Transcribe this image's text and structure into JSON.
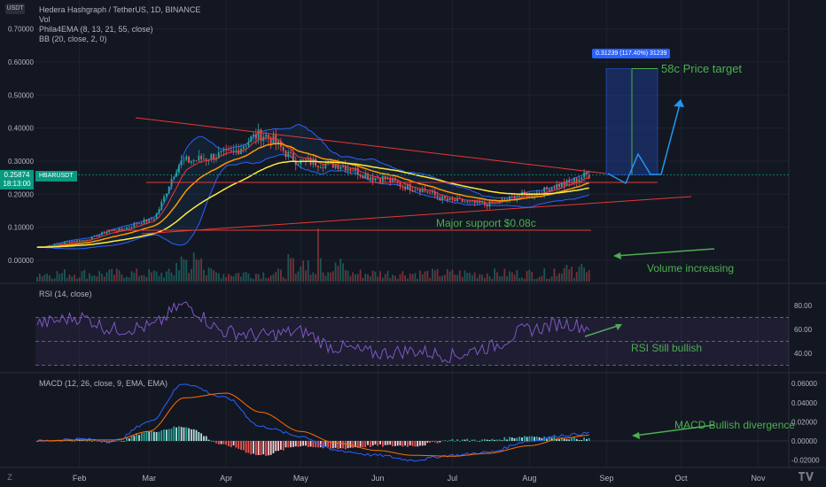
{
  "header": {
    "currency_badge": "USDT",
    "title": "Hedera Hashgraph / TetherUS, 1D, BINANCE",
    "vol_label": "Vol",
    "ema_label": "Phila4EMA (8, 13, 21, 55, close)",
    "bb_label": "BB (20, close, 2, 0)"
  },
  "price_tag": {
    "price": "0.25874",
    "countdown": "18:13:00",
    "symbol": "HBARUSDT"
  },
  "measure_label": "0.31239 (117.40%) 31239",
  "annotations": {
    "target": "58c Price target",
    "support": "Major support $0.08c",
    "volume": "Volume increasing",
    "rsi": "RSI Still bullish",
    "macd": "MACD Bullish divergence"
  },
  "rsi_label": "RSI (14, close)",
  "macd_label": "MACD (12, 26, close, 9, EMA, EMA)",
  "footer": {
    "z_label": "Z"
  },
  "colors": {
    "background": "#131722",
    "grid": "#1e222d",
    "up": "#26a69a",
    "down": "#ef5350",
    "ema_orange": "#ff9800",
    "ema_yellow": "#ffeb3b",
    "ema_red": "#f23645",
    "bb": "#2962ff",
    "rsi_line": "#7e57c2",
    "macd_line": "#2962ff",
    "signal_line": "#ff6d00",
    "annotation": "#4caf50"
  },
  "chart_data": [
    {
      "type": "candlestick",
      "title": "Hedera Hashgraph / TetherUS, 1D, BINANCE",
      "x": [
        "2021-01-15",
        "2021-02-01",
        "2021-02-15",
        "2021-03-01",
        "2021-03-15",
        "2021-04-01",
        "2021-04-15",
        "2021-05-01",
        "2021-05-15",
        "2021-06-01",
        "2021-06-15",
        "2021-07-01",
        "2021-07-15",
        "2021-08-01",
        "2021-08-15",
        "2021-08-25"
      ],
      "close": [
        0.04,
        0.06,
        0.09,
        0.12,
        0.3,
        0.32,
        0.38,
        0.3,
        0.29,
        0.25,
        0.22,
        0.18,
        0.17,
        0.2,
        0.23,
        0.25874
      ],
      "x_ticks": [
        "Feb",
        "Mar",
        "Apr",
        "May",
        "Jun",
        "Jul",
        "Aug",
        "Sep",
        "Oct",
        "Nov"
      ],
      "y_ticks": [
        0.0,
        0.1,
        0.2,
        0.3,
        0.4,
        0.5,
        0.6,
        0.7
      ],
      "y_tick_labels": [
        "0.00000",
        "0.10000",
        "0.20000",
        "0.30000",
        "0.40000",
        "0.50000",
        "0.60000",
        "0.70000"
      ],
      "ylim": [
        0.0,
        0.7
      ],
      "current_price": 0.25874,
      "price_target": 0.58,
      "support_level": 0.08
    },
    {
      "type": "line",
      "title": "RSI (14, close)",
      "x": [
        "2021-01-15",
        "2021-02-01",
        "2021-02-15",
        "2021-03-01",
        "2021-03-15",
        "2021-04-01",
        "2021-04-15",
        "2021-05-01",
        "2021-05-15",
        "2021-06-01",
        "2021-06-15",
        "2021-07-01",
        "2021-07-15",
        "2021-08-01",
        "2021-08-15",
        "2021-08-25"
      ],
      "values": [
        65,
        70,
        60,
        62,
        80,
        58,
        55,
        58,
        45,
        40,
        42,
        38,
        45,
        60,
        65,
        62
      ],
      "y_ticks": [
        40,
        60,
        80
      ],
      "y_tick_labels": [
        "40.00",
        "60.00",
        "80.00"
      ],
      "bands": [
        30,
        70
      ]
    },
    {
      "type": "bar",
      "title": "MACD (12, 26, close, 9, EMA, EMA)",
      "x": [
        "2021-01-15",
        "2021-02-01",
        "2021-02-15",
        "2021-03-01",
        "2021-03-15",
        "2021-04-01",
        "2021-04-15",
        "2021-05-01",
        "2021-05-15",
        "2021-06-01",
        "2021-06-15",
        "2021-07-01",
        "2021-07-15",
        "2021-08-01",
        "2021-08-15",
        "2021-08-25"
      ],
      "series": [
        {
          "name": "MACD",
          "values": [
            0.0,
            0.002,
            0.0,
            0.02,
            0.06,
            0.045,
            0.015,
            0.005,
            -0.01,
            -0.015,
            -0.02,
            -0.015,
            -0.012,
            0.0,
            0.006,
            0.008
          ]
        },
        {
          "name": "Signal",
          "values": [
            0.0,
            0.001,
            0.001,
            0.01,
            0.045,
            0.05,
            0.03,
            0.01,
            -0.002,
            -0.01,
            -0.015,
            -0.016,
            -0.013,
            -0.005,
            0.003,
            0.006
          ]
        }
      ],
      "y_ticks": [
        -0.02,
        0.0,
        0.02,
        0.04,
        0.06
      ],
      "y_tick_labels": [
        "-0.02000",
        "0.00000",
        "0.02000",
        "0.04000",
        "0.06000"
      ]
    }
  ]
}
